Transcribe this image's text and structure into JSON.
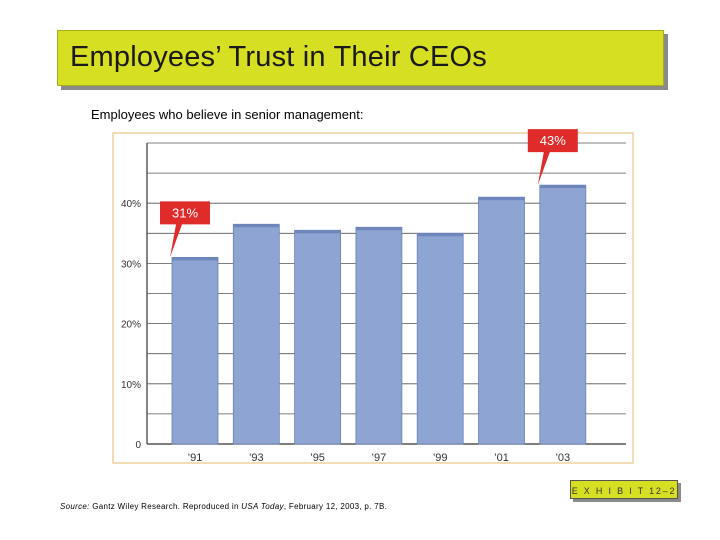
{
  "slide": {
    "title": "Employees’ Trust in Their CEOs",
    "subtitle": "Employees who believe in senior management:",
    "source_prefix": "Source:",
    "source_part1": " Gantz Wiley Research. Reproduced in ",
    "source_italic": "USA Today",
    "source_part2": ", February 12, 2003, p. 7B.",
    "exhibit_label": "E X H I B I T 12–2"
  },
  "chart_data": {
    "type": "bar",
    "title": "Employees who believe in senior management:",
    "categories": [
      "’91",
      "’93",
      "’95",
      "’97",
      "’99",
      "’01",
      "’03"
    ],
    "values": [
      31,
      36.5,
      35.5,
      36,
      35,
      41,
      43
    ],
    "ylim": [
      0,
      50
    ],
    "yticks": [
      0,
      10,
      20,
      30,
      40
    ],
    "ytick_labels": [
      "0",
      "10%",
      "20%",
      "30%",
      "40%"
    ],
    "xlabel": "",
    "ylabel": "",
    "annotations": [
      {
        "category_index": 0,
        "text": "31%"
      },
      {
        "category_index": 6,
        "text": "43%"
      }
    ],
    "colors": {
      "bar": "#8ea4d2",
      "bar_edge": "#6a80b4",
      "callout": "#e02b2b",
      "frame": "#e8b870"
    }
  }
}
